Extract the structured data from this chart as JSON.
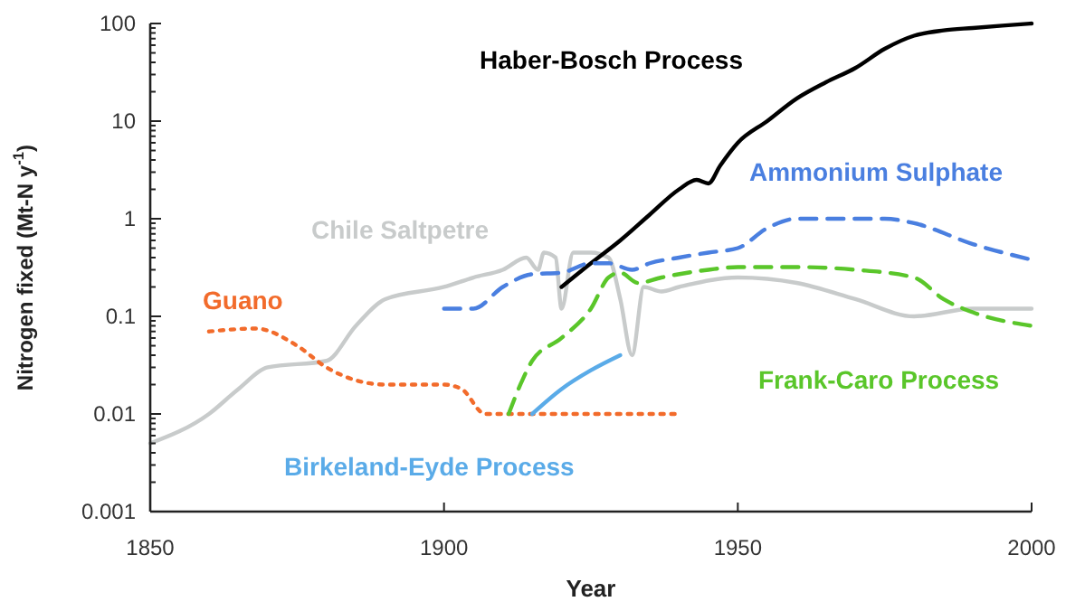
{
  "chart_data": {
    "type": "line",
    "xlabel": "Year",
    "ylabel": "Nitrogen fixed (Mt-N y$^{-1}$)",
    "log": "y",
    "grid": false,
    "marker": "none",
    "xlim": [
      1850,
      2000
    ],
    "xticks": [
      1850,
      1900,
      1950,
      2000
    ],
    "ylim": [
      0.001,
      100
    ],
    "yticks": [
      0.001,
      {
        "value": 0.002,
        "label": null
      },
      {
        "value": 0.003,
        "label": null
      },
      {
        "value": 0.004,
        "label": null
      },
      {
        "value": 0.005,
        "label": null
      },
      {
        "value": 0.006,
        "label": null
      },
      {
        "value": 0.007,
        "label": null
      },
      {
        "value": 0.008,
        "label": null
      },
      {
        "value": 0.009,
        "label": null
      },
      0.01,
      {
        "value": 0.02,
        "label": null
      },
      {
        "value": 0.03,
        "label": null
      },
      {
        "value": 0.04,
        "label": null
      },
      {
        "value": 0.05,
        "label": null
      },
      {
        "value": 0.06,
        "label": null
      },
      {
        "value": 0.07,
        "label": null
      },
      {
        "value": 0.08,
        "label": null
      },
      {
        "value": 0.09,
        "label": null
      },
      0.1,
      {
        "value": 0.2,
        "label": null
      },
      {
        "value": 0.3,
        "label": null
      },
      {
        "value": 0.4,
        "label": null
      },
      {
        "value": 0.5,
        "label": null
      },
      {
        "value": 0.6,
        "label": null
      },
      {
        "value": 0.7,
        "label": null
      },
      {
        "value": 0.8,
        "label": null
      },
      {
        "value": 0.9,
        "label": null
      },
      1,
      {
        "value": 2,
        "label": null
      },
      {
        "value": 3,
        "label": null
      },
      {
        "value": 4,
        "label": null
      },
      {
        "value": 5,
        "label": null
      },
      {
        "value": 6,
        "label": null
      },
      {
        "value": 7,
        "label": null
      },
      {
        "value": 8,
        "label": null
      },
      {
        "value": 9,
        "label": null
      },
      10,
      {
        "value": 20,
        "label": null
      },
      {
        "value": 30,
        "label": null
      },
      {
        "value": 40,
        "label": null
      },
      {
        "value": 50,
        "label": null
      },
      {
        "value": 60,
        "label": null
      },
      {
        "value": 70,
        "label": null
      },
      {
        "value": 80,
        "label": null
      },
      {
        "value": 90,
        "label": null
      },
      100
    ],
    "series": [
      {
        "name": "Chile Saltpetre",
        "color": "#c8cbcb",
        "line_style": "solid",
        "x": [
          1850,
          1860,
          1865,
          1870,
          1880,
          1885,
          1890,
          1900,
          1905,
          1910,
          1914,
          1916,
          1917,
          1919,
          1920,
          1922,
          1925,
          1928,
          1930,
          1932,
          1934,
          1937,
          1940,
          1950,
          1960,
          1970,
          1980,
          1990,
          2000
        ],
        "values": [
          0.005,
          0.01,
          0.018,
          0.03,
          0.035,
          0.08,
          0.15,
          0.2,
          0.25,
          0.3,
          0.4,
          0.3,
          0.45,
          0.4,
          0.12,
          0.45,
          0.45,
          0.4,
          0.15,
          0.04,
          0.2,
          0.18,
          0.2,
          0.25,
          0.22,
          0.15,
          0.1,
          0.12,
          0.12
        ]
      },
      {
        "name": "Guano",
        "color": "#f26b2b",
        "line_style": "dotted",
        "x": [
          1860,
          1868,
          1875,
          1880,
          1890,
          1900,
          1903,
          1907,
          1940
        ],
        "values": [
          0.07,
          0.075,
          0.05,
          0.03,
          0.02,
          0.02,
          0.018,
          0.01,
          0.01
        ]
      },
      {
        "name": "Haber-Bosch Process",
        "color": "#000000",
        "line_style": "solid",
        "x": [
          1920,
          1925,
          1930,
          1935,
          1940,
          1943,
          1945,
          1947,
          1950,
          1955,
          1960,
          1965,
          1970,
          1975,
          1980,
          1985,
          1990,
          1995,
          2000
        ],
        "values": [
          0.2,
          0.35,
          0.6,
          1.1,
          2,
          2.5,
          2.3,
          3.5,
          6,
          10,
          17,
          25,
          35,
          55,
          75,
          85,
          90,
          95,
          100
        ]
      },
      {
        "name": "Ammonium Sulphate",
        "color": "#4a7fe0",
        "line_style": "dashed",
        "x": [
          1900,
          1905,
          1910,
          1915,
          1920,
          1925,
          1928,
          1932,
          1935,
          1940,
          1945,
          1950,
          1955,
          1960,
          1970,
          1975,
          1980,
          1990,
          2000
        ],
        "values": [
          0.12,
          0.12,
          0.2,
          0.27,
          0.28,
          0.35,
          0.35,
          0.3,
          0.35,
          0.4,
          0.45,
          0.5,
          0.8,
          1,
          1,
          1,
          0.9,
          0.55,
          0.38
        ]
      },
      {
        "name": "Frank-Caro Process",
        "color": "#5ac62a",
        "line_style": "dashed",
        "x": [
          1911,
          1913,
          1915,
          1920,
          1925,
          1928,
          1930,
          1933,
          1937,
          1945,
          1950,
          1960,
          1970,
          1980,
          1985,
          1990,
          2000
        ],
        "values": [
          0.01,
          0.02,
          0.035,
          0.06,
          0.12,
          0.25,
          0.28,
          0.22,
          0.25,
          0.3,
          0.32,
          0.32,
          0.3,
          0.25,
          0.15,
          0.11,
          0.08
        ]
      },
      {
        "name": "Birkeland-Eyde Process",
        "color": "#5aabe8",
        "line_style": "solid",
        "x": [
          1915,
          1920,
          1925,
          1930
        ],
        "values": [
          0.01,
          0.018,
          0.028,
          0.04
        ]
      }
    ]
  }
}
